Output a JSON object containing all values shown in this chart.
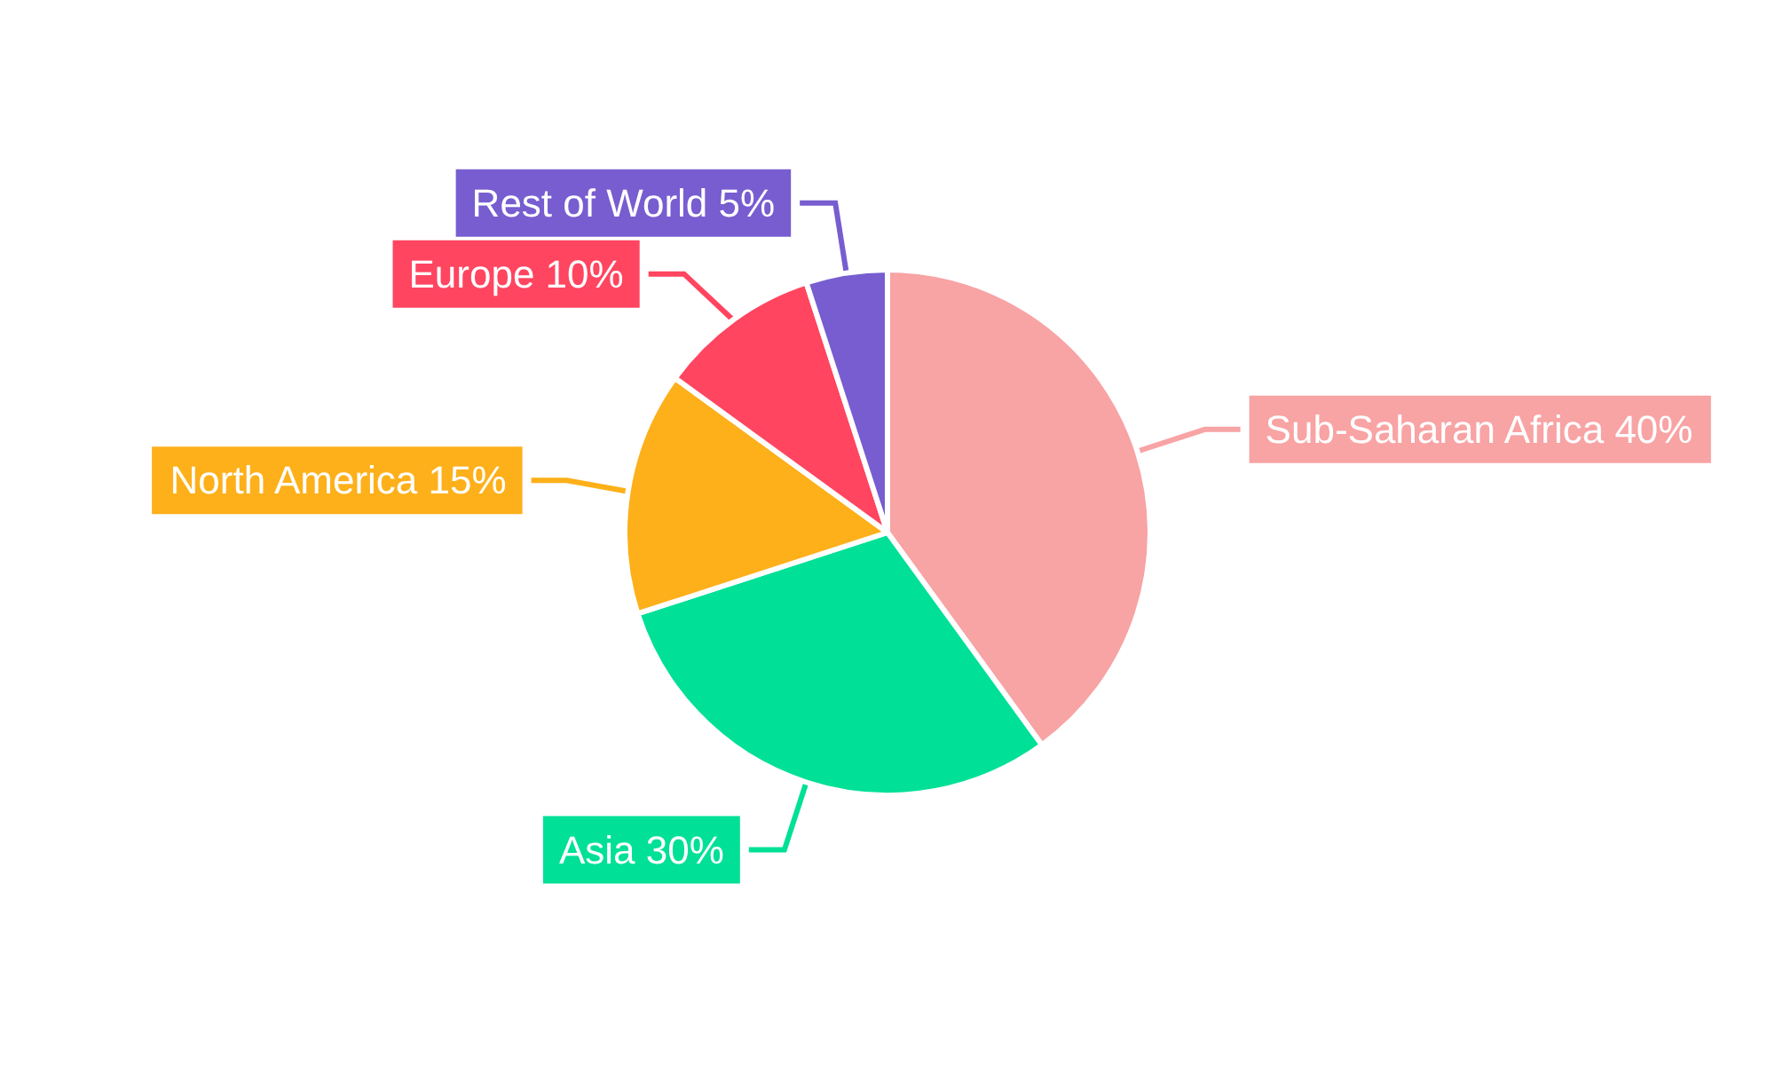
{
  "chart_data": {
    "type": "pie",
    "categories": [
      "Sub-Saharan Africa",
      "Asia",
      "North America",
      "Europe",
      "Rest of World"
    ],
    "values": [
      40,
      30,
      15,
      10,
      5
    ],
    "colors": [
      "#f8a3a4",
      "#00e096",
      "#fdb01a",
      "#ff4560",
      "#775dd0"
    ],
    "value_labels": [
      "40%",
      "30%",
      "15%",
      "10%",
      "5%"
    ]
  }
}
